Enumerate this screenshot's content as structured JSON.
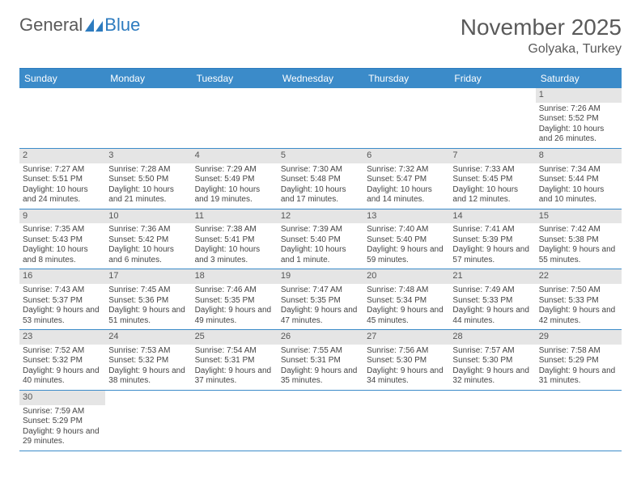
{
  "logo": {
    "text1": "General",
    "text2": "Blue"
  },
  "title": "November 2025",
  "subtitle": "Golyaka, Turkey",
  "colors": {
    "header_bg": "#3b8bc9",
    "header_text": "#ffffff",
    "daynum_bg": "#e5e5e5",
    "border": "#3b8bc9",
    "logo_gray": "#5a5a5a",
    "logo_blue": "#2d7bbf"
  },
  "days_of_week": [
    "Sunday",
    "Monday",
    "Tuesday",
    "Wednesday",
    "Thursday",
    "Friday",
    "Saturday"
  ],
  "weeks": [
    [
      null,
      null,
      null,
      null,
      null,
      null,
      {
        "n": "1",
        "sunrise": "Sunrise: 7:26 AM",
        "sunset": "Sunset: 5:52 PM",
        "daylight": "Daylight: 10 hours and 26 minutes."
      }
    ],
    [
      {
        "n": "2",
        "sunrise": "Sunrise: 7:27 AM",
        "sunset": "Sunset: 5:51 PM",
        "daylight": "Daylight: 10 hours and 24 minutes."
      },
      {
        "n": "3",
        "sunrise": "Sunrise: 7:28 AM",
        "sunset": "Sunset: 5:50 PM",
        "daylight": "Daylight: 10 hours and 21 minutes."
      },
      {
        "n": "4",
        "sunrise": "Sunrise: 7:29 AM",
        "sunset": "Sunset: 5:49 PM",
        "daylight": "Daylight: 10 hours and 19 minutes."
      },
      {
        "n": "5",
        "sunrise": "Sunrise: 7:30 AM",
        "sunset": "Sunset: 5:48 PM",
        "daylight": "Daylight: 10 hours and 17 minutes."
      },
      {
        "n": "6",
        "sunrise": "Sunrise: 7:32 AM",
        "sunset": "Sunset: 5:47 PM",
        "daylight": "Daylight: 10 hours and 14 minutes."
      },
      {
        "n": "7",
        "sunrise": "Sunrise: 7:33 AM",
        "sunset": "Sunset: 5:45 PM",
        "daylight": "Daylight: 10 hours and 12 minutes."
      },
      {
        "n": "8",
        "sunrise": "Sunrise: 7:34 AM",
        "sunset": "Sunset: 5:44 PM",
        "daylight": "Daylight: 10 hours and 10 minutes."
      }
    ],
    [
      {
        "n": "9",
        "sunrise": "Sunrise: 7:35 AM",
        "sunset": "Sunset: 5:43 PM",
        "daylight": "Daylight: 10 hours and 8 minutes."
      },
      {
        "n": "10",
        "sunrise": "Sunrise: 7:36 AM",
        "sunset": "Sunset: 5:42 PM",
        "daylight": "Daylight: 10 hours and 6 minutes."
      },
      {
        "n": "11",
        "sunrise": "Sunrise: 7:38 AM",
        "sunset": "Sunset: 5:41 PM",
        "daylight": "Daylight: 10 hours and 3 minutes."
      },
      {
        "n": "12",
        "sunrise": "Sunrise: 7:39 AM",
        "sunset": "Sunset: 5:40 PM",
        "daylight": "Daylight: 10 hours and 1 minute."
      },
      {
        "n": "13",
        "sunrise": "Sunrise: 7:40 AM",
        "sunset": "Sunset: 5:40 PM",
        "daylight": "Daylight: 9 hours and 59 minutes."
      },
      {
        "n": "14",
        "sunrise": "Sunrise: 7:41 AM",
        "sunset": "Sunset: 5:39 PM",
        "daylight": "Daylight: 9 hours and 57 minutes."
      },
      {
        "n": "15",
        "sunrise": "Sunrise: 7:42 AM",
        "sunset": "Sunset: 5:38 PM",
        "daylight": "Daylight: 9 hours and 55 minutes."
      }
    ],
    [
      {
        "n": "16",
        "sunrise": "Sunrise: 7:43 AM",
        "sunset": "Sunset: 5:37 PM",
        "daylight": "Daylight: 9 hours and 53 minutes."
      },
      {
        "n": "17",
        "sunrise": "Sunrise: 7:45 AM",
        "sunset": "Sunset: 5:36 PM",
        "daylight": "Daylight: 9 hours and 51 minutes."
      },
      {
        "n": "18",
        "sunrise": "Sunrise: 7:46 AM",
        "sunset": "Sunset: 5:35 PM",
        "daylight": "Daylight: 9 hours and 49 minutes."
      },
      {
        "n": "19",
        "sunrise": "Sunrise: 7:47 AM",
        "sunset": "Sunset: 5:35 PM",
        "daylight": "Daylight: 9 hours and 47 minutes."
      },
      {
        "n": "20",
        "sunrise": "Sunrise: 7:48 AM",
        "sunset": "Sunset: 5:34 PM",
        "daylight": "Daylight: 9 hours and 45 minutes."
      },
      {
        "n": "21",
        "sunrise": "Sunrise: 7:49 AM",
        "sunset": "Sunset: 5:33 PM",
        "daylight": "Daylight: 9 hours and 44 minutes."
      },
      {
        "n": "22",
        "sunrise": "Sunrise: 7:50 AM",
        "sunset": "Sunset: 5:33 PM",
        "daylight": "Daylight: 9 hours and 42 minutes."
      }
    ],
    [
      {
        "n": "23",
        "sunrise": "Sunrise: 7:52 AM",
        "sunset": "Sunset: 5:32 PM",
        "daylight": "Daylight: 9 hours and 40 minutes."
      },
      {
        "n": "24",
        "sunrise": "Sunrise: 7:53 AM",
        "sunset": "Sunset: 5:32 PM",
        "daylight": "Daylight: 9 hours and 38 minutes."
      },
      {
        "n": "25",
        "sunrise": "Sunrise: 7:54 AM",
        "sunset": "Sunset: 5:31 PM",
        "daylight": "Daylight: 9 hours and 37 minutes."
      },
      {
        "n": "26",
        "sunrise": "Sunrise: 7:55 AM",
        "sunset": "Sunset: 5:31 PM",
        "daylight": "Daylight: 9 hours and 35 minutes."
      },
      {
        "n": "27",
        "sunrise": "Sunrise: 7:56 AM",
        "sunset": "Sunset: 5:30 PM",
        "daylight": "Daylight: 9 hours and 34 minutes."
      },
      {
        "n": "28",
        "sunrise": "Sunrise: 7:57 AM",
        "sunset": "Sunset: 5:30 PM",
        "daylight": "Daylight: 9 hours and 32 minutes."
      },
      {
        "n": "29",
        "sunrise": "Sunrise: 7:58 AM",
        "sunset": "Sunset: 5:29 PM",
        "daylight": "Daylight: 9 hours and 31 minutes."
      }
    ],
    [
      {
        "n": "30",
        "sunrise": "Sunrise: 7:59 AM",
        "sunset": "Sunset: 5:29 PM",
        "daylight": "Daylight: 9 hours and 29 minutes."
      },
      null,
      null,
      null,
      null,
      null,
      null
    ]
  ]
}
